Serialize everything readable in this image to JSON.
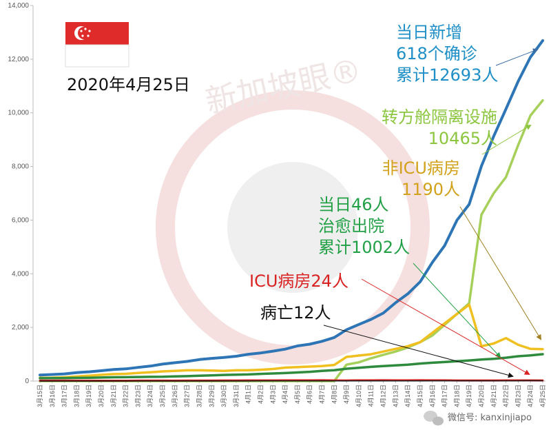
{
  "date_label": "2020年4月25日",
  "watermark_text": "新加坡眼®",
  "footer": {
    "icon": "wechat-icon",
    "text": "微信号: kanxinjiapo"
  },
  "flag": {
    "icon": "singapore-flag-icon",
    "red": "#e02b2b",
    "white": "#ffffff"
  },
  "annotations": [
    {
      "id": "total",
      "lines": [
        "当日新增",
        "618个确诊",
        "累计12693人"
      ],
      "color": "#1f8fc7"
    },
    {
      "id": "dorm",
      "lines": [
        "转方舱隔离设施",
        "10465人"
      ],
      "color": "#8cc63e"
    },
    {
      "id": "ward",
      "lines": [
        "非ICU病房",
        "1190人"
      ],
      "color": "#d3a21c"
    },
    {
      "id": "recovered",
      "lines": [
        "当日46人",
        "治愈出院",
        "累计1002人"
      ],
      "color": "#22a046"
    },
    {
      "id": "icu",
      "lines": [
        "ICU病房24人"
      ],
      "color": "#d92222"
    },
    {
      "id": "death",
      "lines": [
        "病亡12人"
      ],
      "color": "#111111"
    }
  ],
  "chart_data": {
    "type": "line",
    "ylim": [
      0,
      14000
    ],
    "yticks": [
      "0",
      "2,000",
      "4,000",
      "6,000",
      "8,000",
      "10,000",
      "12,000",
      "14,000"
    ],
    "grid": false,
    "categories": [
      "3月15日",
      "3月16日",
      "3月17日",
      "3月18日",
      "3月19日",
      "3月20日",
      "3月21日",
      "3月22日",
      "3月23日",
      "3月24日",
      "3月25日",
      "3月26日",
      "3月27日",
      "3月28日",
      "3月29日",
      "3月30日",
      "3月31日",
      "4月1日",
      "4月2日",
      "4月3日",
      "4月4日",
      "4月5日",
      "4月6日",
      "4月7日",
      "4月8日",
      "4月9日",
      "4月10日",
      "4月11日",
      "4月12日",
      "4月13日",
      "4月14日",
      "4月15日",
      "4月16日",
      "4月17日",
      "4月18日",
      "4月19日",
      "4月20日",
      "4月21日",
      "4月22日",
      "4月23日",
      "4月24日",
      "4月25日"
    ],
    "series": [
      {
        "color": "#2e75b6",
        "values": [
          226,
          243,
          266,
          313,
          345,
          385,
          432,
          455,
          509,
          558,
          631,
          683,
          732,
          802,
          844,
          879,
          926,
          1000,
          1049,
          1114,
          1189,
          1309,
          1375,
          1481,
          1623,
          1910,
          2108,
          2299,
          2532,
          2918,
          3252,
          3699,
          4427,
          5050,
          5992,
          6588,
          8014,
          9125,
          10141,
          11178,
          12075,
          12693
        ]
      },
      {
        "color": "#a6d05a",
        "values": [
          0,
          0,
          0,
          0,
          0,
          0,
          0,
          0,
          0,
          0,
          0,
          0,
          0,
          0,
          0,
          0,
          0,
          0,
          0,
          0,
          0,
          0,
          0,
          0,
          0,
          611,
          700,
          850,
          980,
          1100,
          1250,
          1450,
          1700,
          2100,
          2500,
          2900,
          6200,
          7000,
          7600,
          8800,
          9900,
          10465
        ]
      },
      {
        "color": "#f0c020",
        "values": [
          120,
          125,
          140,
          170,
          200,
          230,
          260,
          270,
          300,
          330,
          360,
          380,
          400,
          400,
          390,
          380,
          400,
          400,
          420,
          450,
          500,
          520,
          540,
          560,
          600,
          900,
          950,
          1000,
          1100,
          1200,
          1300,
          1450,
          1800,
          2150,
          2500,
          2850,
          1300,
          1400,
          1600,
          1350,
          1200,
          1190
        ]
      },
      {
        "color": "#2e8b3e",
        "values": [
          105,
          109,
          114,
          117,
          124,
          131,
          140,
          144,
          152,
          156,
          160,
          172,
          183,
          198,
          212,
          228,
          240,
          246,
          266,
          282,
          297,
          320,
          344,
          377,
          406,
          460,
          492,
          528,
          560,
          586,
          611,
          652,
          683,
          708,
          740,
          768,
          801,
          830,
          870,
          924,
          956,
          1002
        ]
      },
      {
        "color": "#d62b2b",
        "values": [
          15,
          15,
          17,
          16,
          15,
          14,
          13,
          14,
          17,
          19,
          17,
          16,
          17,
          19,
          20,
          23,
          24,
          26,
          25,
          26,
          29,
          29,
          29,
          32,
          26,
          23,
          29,
          28,
          31,
          29,
          28,
          32,
          29,
          27,
          22,
          24,
          22,
          24,
          25,
          26,
          25,
          24
        ]
      },
      {
        "color": "#111111",
        "values": [
          0,
          0,
          0,
          0,
          0,
          2,
          2,
          2,
          2,
          2,
          2,
          2,
          2,
          2,
          2,
          2,
          3,
          3,
          4,
          5,
          5,
          6,
          6,
          6,
          6,
          6,
          6,
          6,
          7,
          7,
          7,
          8,
          10,
          10,
          11,
          11,
          11,
          11,
          11,
          11,
          12,
          12
        ]
      }
    ]
  }
}
